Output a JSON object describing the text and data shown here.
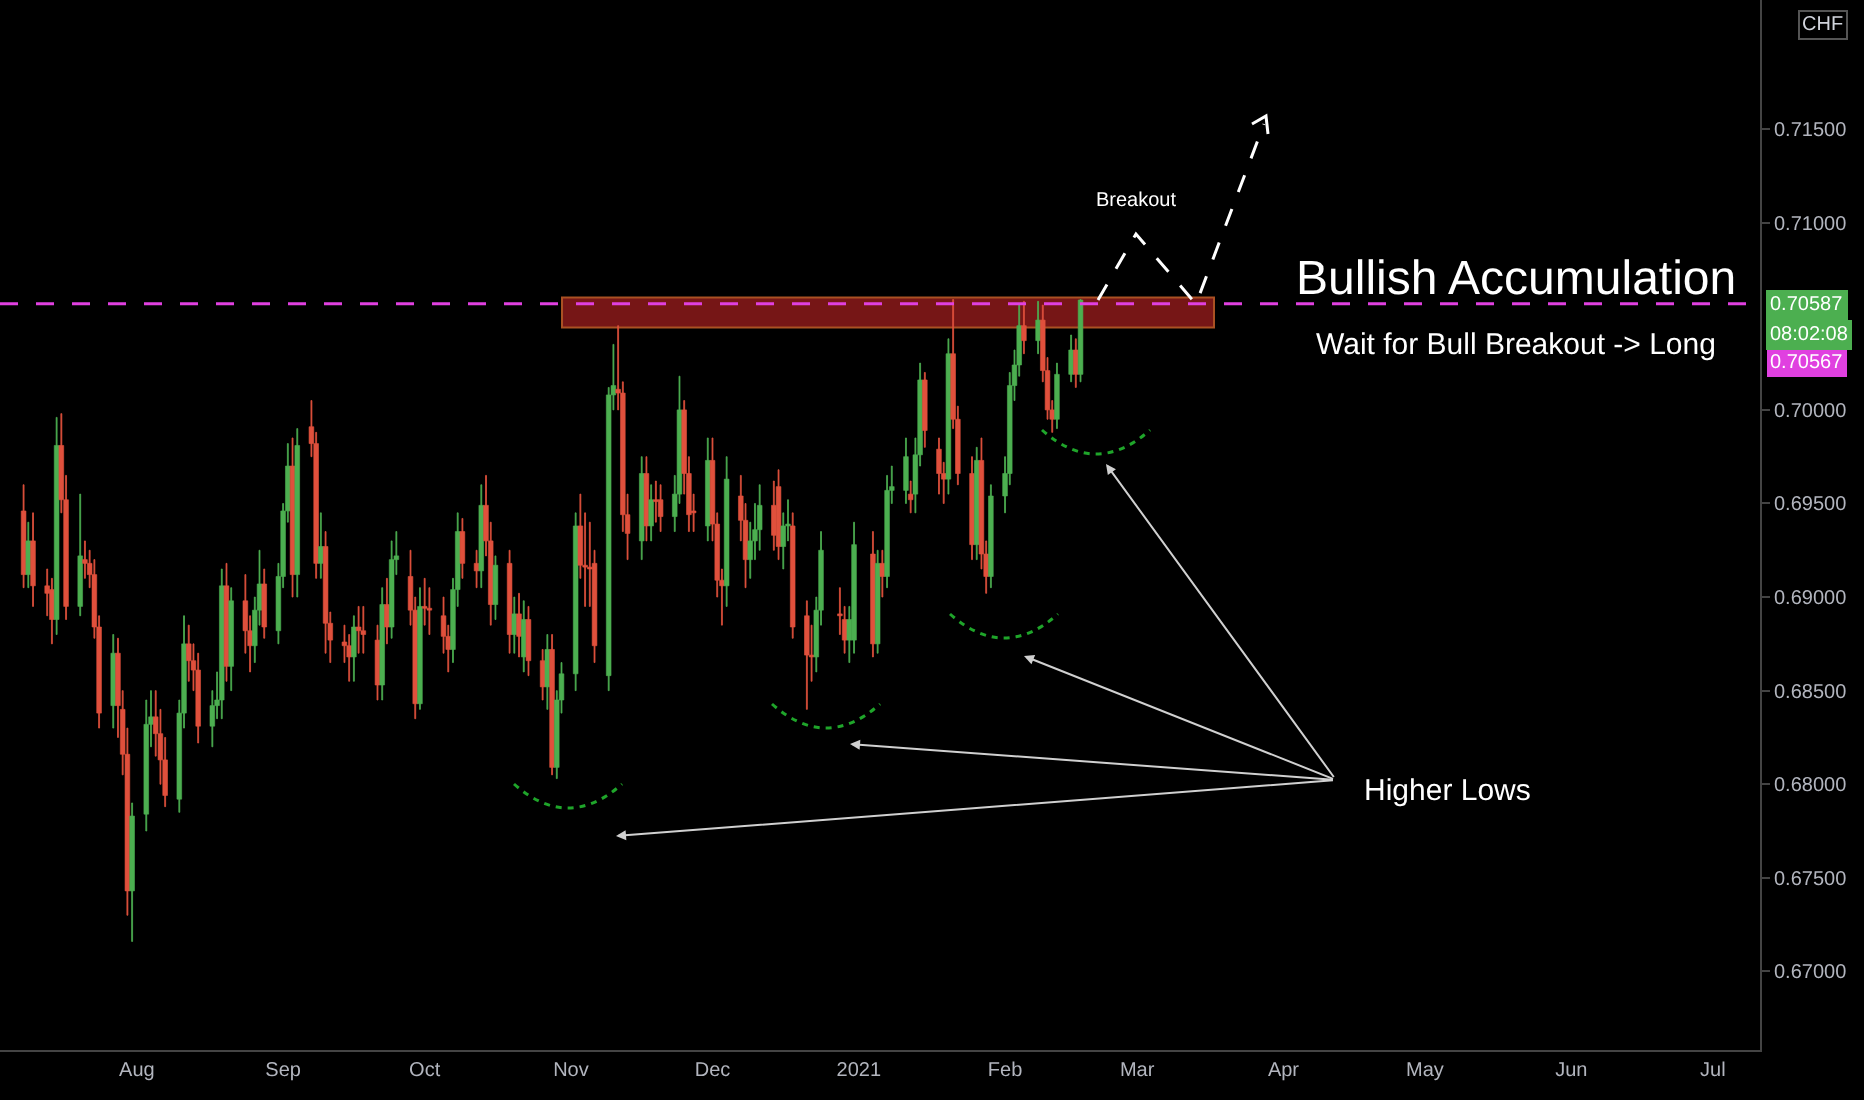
{
  "chart_data": {
    "type": "candlestick",
    "x": [
      "2020-07-08",
      "2020-07-09",
      "2020-07-10",
      "2020-07-13",
      "2020-07-14",
      "2020-07-15",
      "2020-07-16",
      "2020-07-17",
      "2020-07-20",
      "2020-07-21",
      "2020-07-22",
      "2020-07-23",
      "2020-07-24",
      "2020-07-27",
      "2020-07-28",
      "2020-07-29",
      "2020-07-30",
      "2020-07-31",
      "2020-08-03",
      "2020-08-04",
      "2020-08-05",
      "2020-08-06",
      "2020-08-07",
      "2020-08-10",
      "2020-08-11",
      "2020-08-12",
      "2020-08-13",
      "2020-08-14",
      "2020-08-17",
      "2020-08-18",
      "2020-08-19",
      "2020-08-20",
      "2020-08-21",
      "2020-08-24",
      "2020-08-25",
      "2020-08-26",
      "2020-08-27",
      "2020-08-28",
      "2020-08-31",
      "2020-09-01",
      "2020-09-02",
      "2020-09-03",
      "2020-09-04",
      "2020-09-07",
      "2020-09-08",
      "2020-09-09",
      "2020-09-10",
      "2020-09-11",
      "2020-09-14",
      "2020-09-15",
      "2020-09-16",
      "2020-09-17",
      "2020-09-18",
      "2020-09-21",
      "2020-09-22",
      "2020-09-23",
      "2020-09-24",
      "2020-09-25",
      "2020-09-28",
      "2020-09-29",
      "2020-09-30",
      "2020-10-01",
      "2020-10-02",
      "2020-10-05",
      "2020-10-06",
      "2020-10-07",
      "2020-10-08",
      "2020-10-09",
      "2020-10-12",
      "2020-10-13",
      "2020-10-14",
      "2020-10-15",
      "2020-10-16",
      "2020-10-19",
      "2020-10-20",
      "2020-10-21",
      "2020-10-22",
      "2020-10-23",
      "2020-10-26",
      "2020-10-27",
      "2020-10-28",
      "2020-10-29",
      "2020-10-30",
      "2020-11-02",
      "2020-11-03",
      "2020-11-04",
      "2020-11-05",
      "2020-11-06",
      "2020-11-09",
      "2020-11-10",
      "2020-11-11",
      "2020-11-12",
      "2020-11-13",
      "2020-11-16",
      "2020-11-17",
      "2020-11-18",
      "2020-11-19",
      "2020-11-20",
      "2020-11-23",
      "2020-11-24",
      "2020-11-25",
      "2020-11-26",
      "2020-11-27",
      "2020-11-30",
      "2020-12-01",
      "2020-12-02",
      "2020-12-03",
      "2020-12-04",
      "2020-12-07",
      "2020-12-08",
      "2020-12-09",
      "2020-12-10",
      "2020-12-11",
      "2020-12-14",
      "2020-12-15",
      "2020-12-16",
      "2020-12-17",
      "2020-12-18",
      "2020-12-21",
      "2020-12-22",
      "2020-12-23",
      "2020-12-24",
      "2020-12-28",
      "2020-12-29",
      "2020-12-30",
      "2020-12-31",
      "2021-01-04",
      "2021-01-05",
      "2021-01-06",
      "2021-01-07",
      "2021-01-08",
      "2021-01-11",
      "2021-01-12",
      "2021-01-13",
      "2021-01-14",
      "2021-01-15",
      "2021-01-18",
      "2021-01-19",
      "2021-01-20",
      "2021-01-21",
      "2021-01-22",
      "2021-01-25",
      "2021-01-26",
      "2021-01-27",
      "2021-01-28",
      "2021-01-29",
      "2021-02-01",
      "2021-02-02",
      "2021-02-03",
      "2021-02-04",
      "2021-02-05",
      "2021-02-08",
      "2021-02-09",
      "2021-02-10",
      "2021-02-11",
      "2021-02-12",
      "2021-02-15",
      "2021-02-16",
      "2021-02-17"
    ],
    "ohlc": [
      [
        0.6946,
        0.696,
        0.6905,
        0.6912
      ],
      [
        0.6912,
        0.694,
        0.6905,
        0.693
      ],
      [
        0.693,
        0.6945,
        0.6895,
        0.6906
      ],
      [
        0.6906,
        0.6915,
        0.689,
        0.6902
      ],
      [
        0.6904,
        0.691,
        0.6875,
        0.6888
      ],
      [
        0.6888,
        0.6996,
        0.688,
        0.6981
      ],
      [
        0.6981,
        0.6998,
        0.6945,
        0.6952
      ],
      [
        0.6952,
        0.6965,
        0.6888,
        0.6895
      ],
      [
        0.6895,
        0.6955,
        0.689,
        0.6922
      ],
      [
        0.692,
        0.693,
        0.691,
        0.6918
      ],
      [
        0.6918,
        0.6925,
        0.6905,
        0.6912
      ],
      [
        0.6912,
        0.692,
        0.6878,
        0.6884
      ],
      [
        0.6884,
        0.689,
        0.683,
        0.6838
      ],
      [
        0.6842,
        0.688,
        0.683,
        0.687
      ],
      [
        0.687,
        0.6878,
        0.6825,
        0.6842
      ],
      [
        0.684,
        0.685,
        0.6805,
        0.6816
      ],
      [
        0.6816,
        0.683,
        0.673,
        0.6743
      ],
      [
        0.6743,
        0.679,
        0.6716,
        0.6783
      ],
      [
        0.6784,
        0.6845,
        0.6775,
        0.6832
      ],
      [
        0.6832,
        0.685,
        0.682,
        0.6836
      ],
      [
        0.6836,
        0.685,
        0.6815,
        0.6827
      ],
      [
        0.6827,
        0.684,
        0.68,
        0.6813
      ],
      [
        0.6813,
        0.6825,
        0.6788,
        0.6794
      ],
      [
        0.6792,
        0.6845,
        0.6785,
        0.6838
      ],
      [
        0.6838,
        0.689,
        0.683,
        0.6875
      ],
      [
        0.6875,
        0.6885,
        0.6855,
        0.6866
      ],
      [
        0.6866,
        0.6875,
        0.685,
        0.6861
      ],
      [
        0.6861,
        0.687,
        0.6822,
        0.6831
      ],
      [
        0.6831,
        0.685,
        0.682,
        0.6842
      ],
      [
        0.6842,
        0.686,
        0.6835,
        0.6845
      ],
      [
        0.6845,
        0.6915,
        0.6835,
        0.6906
      ],
      [
        0.6906,
        0.6918,
        0.6855,
        0.6863
      ],
      [
        0.6863,
        0.6905,
        0.685,
        0.6898
      ],
      [
        0.6898,
        0.6912,
        0.687,
        0.6882
      ],
      [
        0.6882,
        0.689,
        0.686,
        0.6874
      ],
      [
        0.6874,
        0.69,
        0.6865,
        0.6893
      ],
      [
        0.6893,
        0.6925,
        0.6885,
        0.6907
      ],
      [
        0.6907,
        0.6915,
        0.6878,
        0.6884
      ],
      [
        0.6882,
        0.6918,
        0.6875,
        0.6911
      ],
      [
        0.6911,
        0.695,
        0.6905,
        0.6946
      ],
      [
        0.6946,
        0.6982,
        0.694,
        0.697
      ],
      [
        0.697,
        0.6985,
        0.69,
        0.6912
      ],
      [
        0.6912,
        0.699,
        0.69,
        0.6981
      ],
      [
        0.6991,
        0.7005,
        0.6975,
        0.6982
      ],
      [
        0.6982,
        0.6988,
        0.691,
        0.6918
      ],
      [
        0.6918,
        0.6945,
        0.691,
        0.6927
      ],
      [
        0.6927,
        0.6935,
        0.687,
        0.6886
      ],
      [
        0.6886,
        0.6892,
        0.6865,
        0.6877
      ],
      [
        0.6876,
        0.6885,
        0.6865,
        0.6874
      ],
      [
        0.6874,
        0.688,
        0.6855,
        0.6868
      ],
      [
        0.6868,
        0.689,
        0.6855,
        0.6884
      ],
      [
        0.6884,
        0.6895,
        0.687,
        0.6882
      ],
      [
        0.6882,
        0.6895,
        0.687,
        0.688
      ],
      [
        0.6877,
        0.6885,
        0.6845,
        0.6853
      ],
      [
        0.6853,
        0.6905,
        0.6845,
        0.6896
      ],
      [
        0.6896,
        0.691,
        0.6875,
        0.6884
      ],
      [
        0.6884,
        0.693,
        0.6878,
        0.692
      ],
      [
        0.692,
        0.6935,
        0.6912,
        0.6922
      ],
      [
        0.6911,
        0.6925,
        0.6885,
        0.6893
      ],
      [
        0.6893,
        0.69,
        0.6835,
        0.6843
      ],
      [
        0.6843,
        0.6905,
        0.684,
        0.6895
      ],
      [
        0.6895,
        0.691,
        0.6885,
        0.6894
      ],
      [
        0.6894,
        0.6905,
        0.688,
        0.6893
      ],
      [
        0.689,
        0.69,
        0.687,
        0.6879
      ],
      [
        0.6879,
        0.6885,
        0.686,
        0.6872
      ],
      [
        0.6872,
        0.691,
        0.6865,
        0.6904
      ],
      [
        0.6904,
        0.6945,
        0.6895,
        0.6935
      ],
      [
        0.6935,
        0.6942,
        0.691,
        0.6918
      ],
      [
        0.6918,
        0.6925,
        0.6905,
        0.6914
      ],
      [
        0.6914,
        0.696,
        0.6905,
        0.6949
      ],
      [
        0.6949,
        0.6965,
        0.6922,
        0.693
      ],
      [
        0.693,
        0.694,
        0.6885,
        0.6896
      ],
      [
        0.6896,
        0.6922,
        0.6888,
        0.6917
      ],
      [
        0.6918,
        0.6925,
        0.687,
        0.688
      ],
      [
        0.688,
        0.69,
        0.687,
        0.6891
      ],
      [
        0.6891,
        0.6902,
        0.6868,
        0.6879
      ],
      [
        0.6868,
        0.6898,
        0.686,
        0.6888
      ],
      [
        0.6888,
        0.6895,
        0.6858,
        0.6866
      ],
      [
        0.6866,
        0.6872,
        0.6845,
        0.6852
      ],
      [
        0.6852,
        0.688,
        0.684,
        0.6872
      ],
      [
        0.6872,
        0.688,
        0.6805,
        0.6809
      ],
      [
        0.6809,
        0.685,
        0.6803,
        0.6845
      ],
      [
        0.6845,
        0.6865,
        0.6838,
        0.6859
      ],
      [
        0.6859,
        0.6945,
        0.685,
        0.6938
      ],
      [
        0.6938,
        0.6955,
        0.691,
        0.6917
      ],
      [
        0.6917,
        0.6945,
        0.6895,
        0.6916
      ],
      [
        0.6916,
        0.694,
        0.6895,
        0.6915
      ],
      [
        0.6918,
        0.6925,
        0.6865,
        0.6874
      ],
      [
        0.6858,
        0.7012,
        0.685,
        0.7008
      ],
      [
        0.7008,
        0.7035,
        0.7,
        0.7013
      ],
      [
        0.7011,
        0.7045,
        0.7,
        0.7009
      ],
      [
        0.7009,
        0.7015,
        0.6935,
        0.6944
      ],
      [
        0.6944,
        0.6955,
        0.692,
        0.6934
      ],
      [
        0.693,
        0.6975,
        0.692,
        0.6966
      ],
      [
        0.6966,
        0.6975,
        0.693,
        0.6938
      ],
      [
        0.6938,
        0.696,
        0.693,
        0.6952
      ],
      [
        0.6952,
        0.6962,
        0.694,
        0.6951
      ],
      [
        0.6952,
        0.696,
        0.6935,
        0.6943
      ],
      [
        0.6943,
        0.6965,
        0.6935,
        0.6955
      ],
      [
        0.6955,
        0.7018,
        0.695,
        0.7
      ],
      [
        0.7,
        0.7005,
        0.6955,
        0.6966
      ],
      [
        0.6966,
        0.6975,
        0.6935,
        0.6944
      ],
      [
        0.6946,
        0.6955,
        0.6935,
        0.6945
      ],
      [
        0.6938,
        0.6985,
        0.693,
        0.6973
      ],
      [
        0.6973,
        0.6985,
        0.693,
        0.6939
      ],
      [
        0.6939,
        0.6945,
        0.69,
        0.6909
      ],
      [
        0.6909,
        0.6915,
        0.6885,
        0.6906
      ],
      [
        0.6906,
        0.6975,
        0.6895,
        0.6963
      ],
      [
        0.6954,
        0.6965,
        0.693,
        0.6941
      ],
      [
        0.6941,
        0.695,
        0.6905,
        0.692
      ],
      [
        0.692,
        0.694,
        0.691,
        0.693
      ],
      [
        0.693,
        0.695,
        0.692,
        0.6936
      ],
      [
        0.6936,
        0.696,
        0.6925,
        0.6949
      ],
      [
        0.6949,
        0.6962,
        0.6925,
        0.6933
      ],
      [
        0.6959,
        0.6968,
        0.692,
        0.6927
      ],
      [
        0.6927,
        0.6945,
        0.6915,
        0.6938
      ],
      [
        0.6938,
        0.6952,
        0.693,
        0.6939
      ],
      [
        0.6938,
        0.6945,
        0.6878,
        0.6884
      ],
      [
        0.689,
        0.6898,
        0.684,
        0.6869
      ],
      [
        0.6869,
        0.6885,
        0.6855,
        0.6868
      ],
      [
        0.6868,
        0.69,
        0.686,
        0.6893
      ],
      [
        0.6893,
        0.6935,
        0.6885,
        0.6925
      ],
      [
        0.6891,
        0.6905,
        0.688,
        0.689
      ],
      [
        0.6888,
        0.6895,
        0.687,
        0.6877
      ],
      [
        0.6877,
        0.6895,
        0.6865,
        0.6888
      ],
      [
        0.6877,
        0.694,
        0.687,
        0.6928
      ],
      [
        0.6923,
        0.6935,
        0.6868,
        0.6875
      ],
      [
        0.6875,
        0.6925,
        0.687,
        0.6918
      ],
      [
        0.6918,
        0.6925,
        0.69,
        0.6911
      ],
      [
        0.6911,
        0.6965,
        0.6905,
        0.6957
      ],
      [
        0.6957,
        0.697,
        0.695,
        0.6959
      ],
      [
        0.6957,
        0.6985,
        0.695,
        0.6975
      ],
      [
        0.6955,
        0.6962,
        0.6945,
        0.6952
      ],
      [
        0.6955,
        0.6985,
        0.6945,
        0.6976
      ],
      [
        0.6976,
        0.7025,
        0.697,
        0.7016
      ],
      [
        0.7016,
        0.702,
        0.698,
        0.6989
      ],
      [
        0.6979,
        0.6985,
        0.6955,
        0.6966
      ],
      [
        0.6966,
        0.6972,
        0.695,
        0.6963
      ],
      [
        0.6963,
        0.7038,
        0.6955,
        0.703
      ],
      [
        0.703,
        0.7059,
        0.699,
        0.6995
      ],
      [
        0.6995,
        0.7002,
        0.696,
        0.6966
      ],
      [
        0.6966,
        0.6975,
        0.692,
        0.6928
      ],
      [
        0.6928,
        0.698,
        0.692,
        0.6973
      ],
      [
        0.6973,
        0.6985,
        0.6915,
        0.6923
      ],
      [
        0.6923,
        0.693,
        0.6902,
        0.6911
      ],
      [
        0.6911,
        0.696,
        0.6905,
        0.6954
      ],
      [
        0.6954,
        0.6975,
        0.6945,
        0.6966
      ],
      [
        0.6966,
        0.702,
        0.696,
        0.7013
      ],
      [
        0.7013,
        0.7032,
        0.7005,
        0.7024
      ],
      [
        0.7024,
        0.7056,
        0.7018,
        0.7045
      ],
      [
        0.7045,
        0.7058,
        0.703,
        0.7037
      ],
      [
        0.7037,
        0.7058,
        0.703,
        0.7048
      ],
      [
        0.7048,
        0.7056,
        0.7015,
        0.7021
      ],
      [
        0.7021,
        0.7028,
        0.6995,
        0.7
      ],
      [
        0.7,
        0.7005,
        0.6988,
        0.6995
      ],
      [
        0.6995,
        0.7025,
        0.699,
        0.7019
      ],
      [
        0.7019,
        0.704,
        0.7015,
        0.7032
      ],
      [
        0.7032,
        0.7038,
        0.7012,
        0.7019
      ],
      [
        0.7019,
        0.7059,
        0.7015,
        0.70587
      ]
    ],
    "colors": [
      "#e0503c",
      "#4caf50",
      "#e0503c",
      "#e0503c",
      "#e0503c",
      "#4caf50",
      "#e0503c",
      "#e0503c",
      "#4caf50",
      "#e0503c",
      "#e0503c",
      "#e0503c",
      "#e0503c",
      "#4caf50",
      "#e0503c",
      "#e0503c",
      "#e0503c",
      "#4caf50",
      "#4caf50",
      "#4caf50",
      "#e0503c",
      "#e0503c",
      "#e0503c",
      "#4caf50",
      "#4caf50",
      "#e0503c",
      "#e0503c",
      "#e0503c",
      "#4caf50",
      "#4caf50",
      "#4caf50",
      "#e0503c",
      "#4caf50",
      "#e0503c",
      "#e0503c",
      "#4caf50",
      "#4caf50",
      "#e0503c",
      "#4caf50",
      "#4caf50",
      "#4caf50",
      "#e0503c",
      "#4caf50",
      "#e0503c",
      "#e0503c",
      "#4caf50",
      "#e0503c",
      "#e0503c",
      "#e0503c",
      "#e0503c",
      "#4caf50",
      "#e0503c",
      "#e0503c",
      "#e0503c",
      "#4caf50",
      "#e0503c",
      "#4caf50",
      "#4caf50",
      "#e0503c",
      "#e0503c",
      "#4caf50",
      "#e0503c",
      "#e0503c",
      "#e0503c",
      "#e0503c",
      "#4caf50",
      "#4caf50",
      "#e0503c",
      "#e0503c",
      "#4caf50",
      "#e0503c",
      "#e0503c",
      "#4caf50",
      "#e0503c",
      "#4caf50",
      "#e0503c",
      "#4caf50",
      "#e0503c",
      "#e0503c",
      "#4caf50",
      "#e0503c",
      "#4caf50",
      "#4caf50",
      "#4caf50",
      "#e0503c",
      "#e0503c",
      "#e0503c",
      "#e0503c",
      "#4caf50",
      "#4caf50",
      "#e0503c",
      "#e0503c",
      "#e0503c",
      "#4caf50",
      "#e0503c",
      "#4caf50",
      "#e0503c",
      "#e0503c",
      "#4caf50",
      "#4caf50",
      "#e0503c",
      "#e0503c",
      "#e0503c",
      "#4caf50",
      "#e0503c",
      "#e0503c",
      "#e0503c",
      "#4caf50",
      "#e0503c",
      "#e0503c",
      "#4caf50",
      "#4caf50",
      "#4caf50",
      "#e0503c",
      "#e0503c",
      "#4caf50",
      "#4caf50",
      "#e0503c",
      "#e0503c",
      "#e0503c",
      "#4caf50",
      "#4caf50",
      "#e0503c",
      "#e0503c",
      "#4caf50",
      "#4caf50",
      "#e0503c",
      "#4caf50",
      "#e0503c",
      "#4caf50",
      "#4caf50",
      "#4caf50",
      "#e0503c",
      "#4caf50",
      "#4caf50",
      "#e0503c",
      "#e0503c",
      "#e0503c",
      "#4caf50",
      "#e0503c",
      "#e0503c",
      "#e0503c",
      "#4caf50",
      "#e0503c",
      "#e0503c",
      "#4caf50",
      "#4caf50",
      "#4caf50",
      "#4caf50",
      "#4caf50",
      "#e0503c",
      "#4caf50",
      "#e0503c",
      "#e0503c",
      "#e0503c",
      "#4caf50",
      "#4caf50",
      "#e0503c",
      "#4caf50"
    ],
    "xlim": [
      "2020-07-03",
      "2021-07-11"
    ],
    "xticks": [
      {
        "value": "2020-08-01",
        "label": "Aug"
      },
      {
        "value": "2020-09-01",
        "label": "Sep"
      },
      {
        "value": "2020-10-01",
        "label": "Oct"
      },
      {
        "value": "2020-11-01",
        "label": "Nov"
      },
      {
        "value": "2020-12-01",
        "label": "Dec"
      },
      {
        "value": "2021-01-01",
        "label": "2021"
      },
      {
        "value": "2021-02-01",
        "label": "Feb"
      },
      {
        "value": "2021-03-01",
        "label": "Mar"
      },
      {
        "value": "2021-04-01",
        "label": "Apr"
      },
      {
        "value": "2021-05-01",
        "label": "May"
      },
      {
        "value": "2021-06-01",
        "label": "Jun"
      },
      {
        "value": "2021-07-01",
        "label": "Jul"
      }
    ],
    "ylim": [
      0.6658,
      0.7219
    ],
    "yticks": [
      {
        "value": 0.67,
        "label": "0.67000"
      },
      {
        "value": 0.675,
        "label": "0.67500"
      },
      {
        "value": 0.68,
        "label": "0.68000"
      },
      {
        "value": 0.685,
        "label": "0.68500"
      },
      {
        "value": 0.69,
        "label": "0.69000"
      },
      {
        "value": 0.695,
        "label": "0.69500"
      },
      {
        "value": 0.7,
        "label": "0.70000"
      },
      {
        "value": 0.71,
        "label": "0.71000"
      },
      {
        "value": 0.715,
        "label": "0.71500"
      }
    ],
    "ref_lines": [
      {
        "axis": "y",
        "value": 0.70567,
        "label": "0.70567",
        "color": "#e040e0",
        "line_style": "dashed"
      }
    ],
    "bands": [
      {
        "axis": "y",
        "from": 0.7044,
        "to": 0.706,
        "color": "#8b1a1a"
      }
    ],
    "annotations": [
      "Bullish Accumulation",
      "Wait for Bull Breakout -> Long",
      "Breakout",
      "Higher Lows",
      "CHF",
      "0.70587",
      "08:02:08"
    ]
  }
}
